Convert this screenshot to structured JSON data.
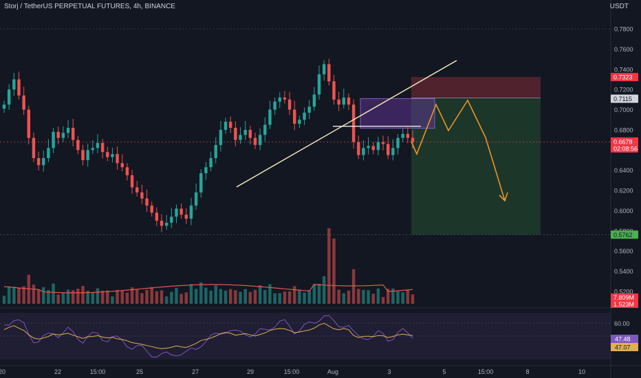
{
  "header": {
    "symbol_title": "Storj / TetherUS PERPETUAL FUTURES, 4h, BINANCE",
    "currency": "USDT"
  },
  "colors": {
    "background": "#131722",
    "up": "#26a69a",
    "down": "#ef5350",
    "rsi_line": "#7e57c2",
    "rsi_ma": "#e0b050",
    "volume_ma": "#ef5350",
    "trendline": "#fff3c4",
    "projection": "#f0932b"
  },
  "chart_data": [
    {
      "type": "candlestick",
      "ylim": [
        0.52,
        0.79
      ],
      "y_ticks": [
        "0.7800",
        "0.7600",
        "0.7400",
        "0.7200",
        "0.7000",
        "0.6800",
        "0.6600",
        "0.6400",
        "0.6200",
        "0.6000",
        "0.5800",
        "0.5600",
        "0.5400",
        "0.5200"
      ],
      "x_ticks": [
        "20",
        "22",
        "15:00",
        "25",
        "27",
        "29",
        "15:00",
        "Aug",
        "3",
        "5",
        "15:00",
        "8",
        "10"
      ],
      "price_labels": [
        {
          "text": "0.7323",
          "value": 0.7323,
          "style": "stop"
        },
        {
          "text": "0.7115",
          "value": 0.7115,
          "style": "entry"
        },
        {
          "text": "0.6678",
          "value": 0.6678,
          "style": "last"
        },
        {
          "text": "02:08:56",
          "value": 0.6678,
          "style": "countdown"
        },
        {
          "text": "0.5762",
          "value": 0.5762,
          "style": "target"
        }
      ],
      "close": [
        0.705,
        0.72,
        0.73,
        0.714,
        0.7,
        0.672,
        0.652,
        0.645,
        0.652,
        0.662,
        0.678,
        0.672,
        0.677,
        0.682,
        0.67,
        0.66,
        0.65,
        0.66,
        0.662,
        0.667,
        0.658,
        0.653,
        0.656,
        0.647,
        0.643,
        0.635,
        0.623,
        0.618,
        0.612,
        0.605,
        0.598,
        0.59,
        0.585,
        0.588,
        0.594,
        0.602,
        0.596,
        0.592,
        0.605,
        0.618,
        0.637,
        0.643,
        0.652,
        0.665,
        0.68,
        0.688,
        0.682,
        0.67,
        0.675,
        0.68,
        0.672,
        0.665,
        0.675,
        0.685,
        0.7,
        0.708,
        0.712,
        0.71,
        0.7,
        0.686,
        0.69,
        0.697,
        0.703,
        0.715,
        0.735,
        0.745,
        0.728,
        0.71,
        0.705,
        0.712,
        0.705,
        0.668,
        0.655,
        0.662,
        0.664,
        0.66,
        0.668,
        0.666,
        0.655,
        0.662,
        0.672,
        0.676,
        0.672,
        0.668
      ],
      "volume_ma_label": "7.809M",
      "volume_label": "1.523M",
      "rsi_ticks": [
        "60.00"
      ],
      "rsi_values": {
        "rsi": "47.48",
        "ma": "47.07"
      }
    }
  ]
}
